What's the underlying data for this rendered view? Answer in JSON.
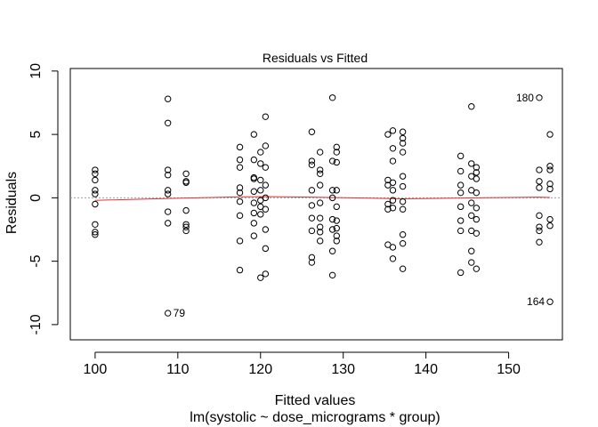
{
  "chart_data": {
    "type": "scatter",
    "title": "Residuals vs Fitted",
    "xlabel": "Fitted values",
    "subtitle": "lm(systolic ~ dose_micrograms * group)",
    "ylabel": "Residuals",
    "xlim": [
      97,
      156.5
    ],
    "ylim": [
      -11.2,
      10.2
    ],
    "x_ticks": [
      100,
      110,
      120,
      130,
      140,
      150
    ],
    "y_ticks": [
      -10,
      -5,
      0,
      5,
      10
    ],
    "reference_line_y": 0,
    "colors": {
      "points": "#000000",
      "smoother": "#d33333",
      "reference_line": "#9a9a9a"
    },
    "points": [
      {
        "x": 100,
        "y": 2.2
      },
      {
        "x": 100,
        "y": 1.9
      },
      {
        "x": 100,
        "y": 1.4
      },
      {
        "x": 100,
        "y": 0.6
      },
      {
        "x": 100,
        "y": 0.3
      },
      {
        "x": 100,
        "y": -0.5
      },
      {
        "x": 100,
        "y": -2.1
      },
      {
        "x": 100,
        "y": -2.7
      },
      {
        "x": 100,
        "y": -2.9
      },
      {
        "x": 108.8,
        "y": 7.8
      },
      {
        "x": 108.8,
        "y": 5.9
      },
      {
        "x": 108.8,
        "y": 2.2
      },
      {
        "x": 108.8,
        "y": 1.8
      },
      {
        "x": 108.8,
        "y": 0.6
      },
      {
        "x": 108.8,
        "y": 0.3
      },
      {
        "x": 108.8,
        "y": -1.1
      },
      {
        "x": 108.8,
        "y": -2.0
      },
      {
        "x": 108.8,
        "y": -9.1
      },
      {
        "x": 111,
        "y": 1.9
      },
      {
        "x": 111,
        "y": 1.3
      },
      {
        "x": 111,
        "y": 1.2
      },
      {
        "x": 111,
        "y": -1.0
      },
      {
        "x": 111,
        "y": -2.1
      },
      {
        "x": 111,
        "y": -2.3
      },
      {
        "x": 111,
        "y": -2.6
      },
      {
        "x": 117.5,
        "y": 4.0
      },
      {
        "x": 117.5,
        "y": 3.0
      },
      {
        "x": 117.5,
        "y": 2.4
      },
      {
        "x": 117.5,
        "y": 0.8
      },
      {
        "x": 117.5,
        "y": 0.4
      },
      {
        "x": 117.5,
        "y": -0.3
      },
      {
        "x": 117.5,
        "y": -1.4
      },
      {
        "x": 117.5,
        "y": -3.4
      },
      {
        "x": 117.5,
        "y": -5.7
      },
      {
        "x": 119.2,
        "y": 5.0
      },
      {
        "x": 119.2,
        "y": 3.0
      },
      {
        "x": 119.2,
        "y": 1.6
      },
      {
        "x": 119.2,
        "y": 1.5
      },
      {
        "x": 119.2,
        "y": 0.5
      },
      {
        "x": 119.2,
        "y": -0.4
      },
      {
        "x": 119.2,
        "y": -1.2
      },
      {
        "x": 119.2,
        "y": -2.0
      },
      {
        "x": 119.2,
        "y": -3.0
      },
      {
        "x": 120.0,
        "y": 3.6
      },
      {
        "x": 120.0,
        "y": 2.7
      },
      {
        "x": 120.0,
        "y": 1.4
      },
      {
        "x": 120.0,
        "y": 0.6
      },
      {
        "x": 120.0,
        "y": -0.2
      },
      {
        "x": 120.0,
        "y": -0.7
      },
      {
        "x": 120.0,
        "y": -1.3
      },
      {
        "x": 120.0,
        "y": -6.3
      },
      {
        "x": 120.6,
        "y": 6.4
      },
      {
        "x": 120.6,
        "y": 4.1
      },
      {
        "x": 120.6,
        "y": 2.4
      },
      {
        "x": 120.6,
        "y": 1.0
      },
      {
        "x": 120.6,
        "y": 0.0
      },
      {
        "x": 120.6,
        "y": -0.9
      },
      {
        "x": 120.6,
        "y": -2.5
      },
      {
        "x": 120.6,
        "y": -4.0
      },
      {
        "x": 120.6,
        "y": -6.0
      },
      {
        "x": 126.2,
        "y": 5.2
      },
      {
        "x": 126.2,
        "y": 2.9
      },
      {
        "x": 126.2,
        "y": 2.6
      },
      {
        "x": 126.2,
        "y": 0.6
      },
      {
        "x": 126.2,
        "y": -0.6
      },
      {
        "x": 126.2,
        "y": -1.6
      },
      {
        "x": 126.2,
        "y": -2.6
      },
      {
        "x": 126.2,
        "y": -4.7
      },
      {
        "x": 126.2,
        "y": -5.1
      },
      {
        "x": 127.2,
        "y": 3.6
      },
      {
        "x": 127.2,
        "y": 2.2
      },
      {
        "x": 127.2,
        "y": 1.9
      },
      {
        "x": 127.2,
        "y": 1.0
      },
      {
        "x": 127.2,
        "y": -0.4
      },
      {
        "x": 127.2,
        "y": -1.6
      },
      {
        "x": 127.2,
        "y": -2.3
      },
      {
        "x": 127.2,
        "y": -2.7
      },
      {
        "x": 127.2,
        "y": -3.4
      },
      {
        "x": 128.7,
        "y": 7.9
      },
      {
        "x": 128.7,
        "y": 2.9
      },
      {
        "x": 128.7,
        "y": 0.6
      },
      {
        "x": 128.7,
        "y": 0.0
      },
      {
        "x": 128.7,
        "y": -1.7
      },
      {
        "x": 128.7,
        "y": -2.5
      },
      {
        "x": 128.7,
        "y": -4.2
      },
      {
        "x": 128.7,
        "y": -6.1
      },
      {
        "x": 129.2,
        "y": 4.0
      },
      {
        "x": 129.2,
        "y": 3.6
      },
      {
        "x": 129.2,
        "y": 2.8
      },
      {
        "x": 129.2,
        "y": 0.6
      },
      {
        "x": 129.2,
        "y": -0.7
      },
      {
        "x": 129.2,
        "y": -1.8
      },
      {
        "x": 129.2,
        "y": -2.4
      },
      {
        "x": 129.2,
        "y": -3.0
      },
      {
        "x": 129.2,
        "y": -3.4
      },
      {
        "x": 135.4,
        "y": 5.0
      },
      {
        "x": 135.4,
        "y": 1.4
      },
      {
        "x": 135.4,
        "y": 1.0
      },
      {
        "x": 135.4,
        "y": -0.5
      },
      {
        "x": 135.4,
        "y": -0.9
      },
      {
        "x": 135.4,
        "y": -3.7
      },
      {
        "x": 136,
        "y": 5.3
      },
      {
        "x": 136,
        "y": 3.9
      },
      {
        "x": 136,
        "y": 2.9
      },
      {
        "x": 136,
        "y": 1.2
      },
      {
        "x": 136,
        "y": 0.6
      },
      {
        "x": 136,
        "y": -0.2
      },
      {
        "x": 136,
        "y": -0.8
      },
      {
        "x": 136,
        "y": -3.9
      },
      {
        "x": 136,
        "y": -4.8
      },
      {
        "x": 137.2,
        "y": 5.2
      },
      {
        "x": 137.2,
        "y": 4.7
      },
      {
        "x": 137.2,
        "y": 4.3
      },
      {
        "x": 137.2,
        "y": 3.6
      },
      {
        "x": 137.2,
        "y": 1.7
      },
      {
        "x": 137.2,
        "y": 0.9
      },
      {
        "x": 137.2,
        "y": -0.3
      },
      {
        "x": 137.2,
        "y": -0.9
      },
      {
        "x": 137.2,
        "y": -2.9
      },
      {
        "x": 137.2,
        "y": -3.6
      },
      {
        "x": 137.2,
        "y": -5.6
      },
      {
        "x": 144.2,
        "y": 3.3
      },
      {
        "x": 144.2,
        "y": 2.1
      },
      {
        "x": 144.2,
        "y": 1.0
      },
      {
        "x": 144.2,
        "y": 0.4
      },
      {
        "x": 144.2,
        "y": -0.7
      },
      {
        "x": 144.2,
        "y": -1.8
      },
      {
        "x": 144.2,
        "y": -2.6
      },
      {
        "x": 144.2,
        "y": -5.9
      },
      {
        "x": 145.5,
        "y": 7.2
      },
      {
        "x": 145.5,
        "y": 2.7
      },
      {
        "x": 145.5,
        "y": 1.7
      },
      {
        "x": 145.5,
        "y": 0.6
      },
      {
        "x": 145.5,
        "y": -0.4
      },
      {
        "x": 145.5,
        "y": -1.4
      },
      {
        "x": 145.5,
        "y": -2.6
      },
      {
        "x": 145.5,
        "y": -4.2
      },
      {
        "x": 145.5,
        "y": -5.1
      },
      {
        "x": 146.1,
        "y": 2.4
      },
      {
        "x": 146.1,
        "y": 2.0
      },
      {
        "x": 146.1,
        "y": 1.5
      },
      {
        "x": 146.1,
        "y": 0.4
      },
      {
        "x": 146.1,
        "y": -0.8
      },
      {
        "x": 146.1,
        "y": -1.7
      },
      {
        "x": 146.1,
        "y": -2.8
      },
      {
        "x": 146.1,
        "y": -5.6
      },
      {
        "x": 153.7,
        "y": 7.9
      },
      {
        "x": 153.7,
        "y": 2.2
      },
      {
        "x": 153.7,
        "y": 1.3
      },
      {
        "x": 153.7,
        "y": 0.8
      },
      {
        "x": 153.7,
        "y": -1.4
      },
      {
        "x": 153.7,
        "y": -2.3
      },
      {
        "x": 153.7,
        "y": -2.6
      },
      {
        "x": 153.7,
        "y": -3.5
      },
      {
        "x": 155.0,
        "y": 5.0
      },
      {
        "x": 155.0,
        "y": 2.5
      },
      {
        "x": 155.0,
        "y": 2.2
      },
      {
        "x": 155.0,
        "y": 1.1
      },
      {
        "x": 155.0,
        "y": 0.7
      },
      {
        "x": 155.0,
        "y": -1.7
      },
      {
        "x": 155.0,
        "y": -2.2
      },
      {
        "x": 155.0,
        "y": -8.2
      }
    ],
    "labels": [
      {
        "x": 108.8,
        "y": -9.1,
        "text": "79",
        "side": "right"
      },
      {
        "x": 153.7,
        "y": 7.9,
        "text": "180",
        "side": "left"
      },
      {
        "x": 155.0,
        "y": -8.2,
        "text": "164",
        "side": "left"
      }
    ],
    "smooth_line": [
      {
        "x": 100,
        "y": -0.2
      },
      {
        "x": 108.8,
        "y": -0.05
      },
      {
        "x": 111,
        "y": -0.02
      },
      {
        "x": 117.5,
        "y": 0.08
      },
      {
        "x": 120.6,
        "y": 0.1
      },
      {
        "x": 126.2,
        "y": 0.05
      },
      {
        "x": 129.2,
        "y": 0.02
      },
      {
        "x": 135.4,
        "y": -0.05
      },
      {
        "x": 137.2,
        "y": -0.08
      },
      {
        "x": 144.2,
        "y": -0.02
      },
      {
        "x": 146.1,
        "y": 0.0
      },
      {
        "x": 153.7,
        "y": 0.05
      },
      {
        "x": 155.0,
        "y": 0.03
      }
    ]
  }
}
